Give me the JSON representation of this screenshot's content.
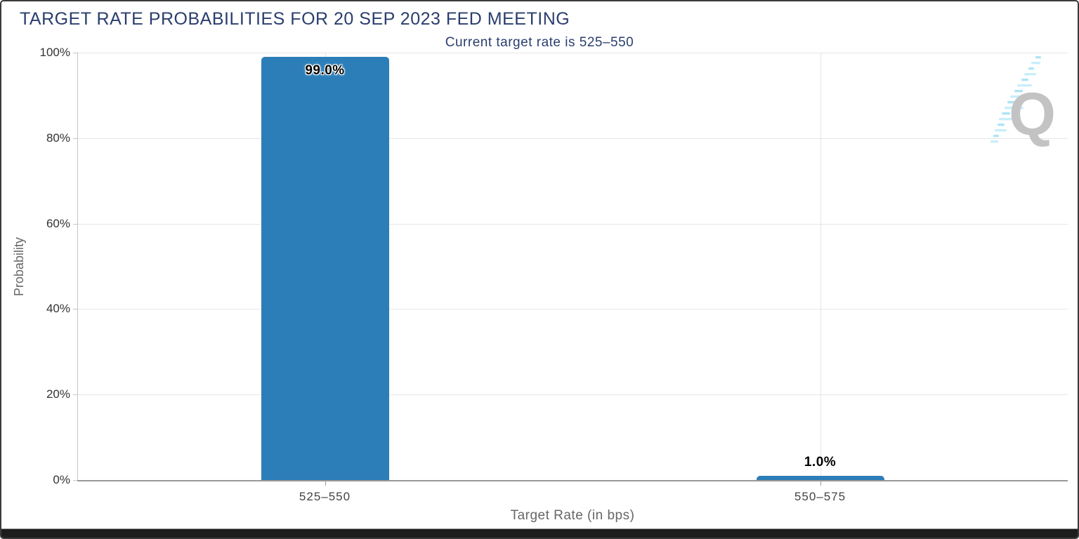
{
  "header": {
    "title": "TARGET RATE PROBABILITIES FOR 20 SEP 2023 FED MEETING",
    "subtitle": "Current target rate is 525–550"
  },
  "logo": {
    "letter": "Q"
  },
  "chart_data": {
    "type": "bar",
    "title": "TARGET RATE PROBABILITIES FOR 20 SEP 2023 FED MEETING",
    "subtitle": "Current target rate is 525–550",
    "categories": [
      "525–550",
      "550–575"
    ],
    "values": [
      99.0,
      1.0
    ],
    "data_labels": [
      "99.0%",
      "1.0%"
    ],
    "xlabel": "Target Rate (in bps)",
    "ylabel": "Probability",
    "ylim": [
      0,
      100
    ],
    "ytick_values": [
      0,
      20,
      40,
      60,
      80,
      100
    ],
    "ytick_labels": [
      "0%",
      "20%",
      "40%",
      "60%",
      "80%",
      "100%"
    ],
    "grid": true,
    "legend_position": "none",
    "bar_color": "#2b7eb8",
    "title_color": "#2a3e6d",
    "grid_color": "#e6e6e6"
  }
}
